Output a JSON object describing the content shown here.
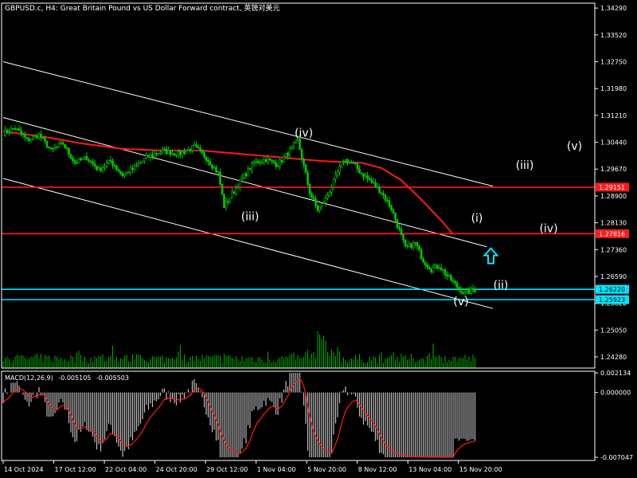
{
  "title": "GBPUSD.c, H4:  Great Britain Pound vs US Dollar Forward contract, 英镑对美元",
  "macd": {
    "label": "MACD(12,26,9)",
    "main": "-0.005105",
    "signal": "-0.005503"
  },
  "colors": {
    "background": "#000000",
    "axis": "#ffffff",
    "candle_up": "#00c800",
    "candle_down": "#00c800",
    "volume": "#00b400",
    "ma_line": "#ff1a1a",
    "resistance_line": "#ff1a1a",
    "support_line": "#00e5ff",
    "channel_line": "#ffffff",
    "macd_hist": "#bfbfbf",
    "macd_signal": "#ff1a1a",
    "arrow": "#00e5ff"
  },
  "chart_data": [
    {
      "type": "candlestick",
      "symbol": "GBPUSD.c",
      "timeframe": "H4",
      "y_ticks": [
        "1.34290",
        "1.33520",
        "1.32750",
        "1.31980",
        "1.31210",
        "1.30440",
        "1.29670",
        "1.28900",
        "1.28130",
        "1.27360",
        "1.26590",
        "1.25820",
        "1.25050",
        "1.24280"
      ],
      "ylim": [
        1.2396,
        1.3443
      ],
      "x_ticks": [
        "14 Oct 2024",
        "17 Oct 12:00",
        "22 Oct 04:00",
        "24 Oct 20:00",
        "29 Oct 12:00",
        "1 Nov 04:00",
        "5 Nov 20:00",
        "8 Nov 12:00",
        "13 Nov 04:00",
        "15 Nov 20:00"
      ],
      "price_path": [
        [
          0,
          1.307
        ],
        [
          6,
          1.3085
        ],
        [
          12,
          1.305
        ],
        [
          18,
          1.3065
        ],
        [
          24,
          1.302
        ],
        [
          30,
          1.304
        ],
        [
          36,
          1.2985
        ],
        [
          42,
          1.3
        ],
        [
          48,
          1.2965
        ],
        [
          54,
          1.299
        ],
        [
          60,
          1.295
        ],
        [
          66,
          1.297
        ],
        [
          72,
          1.3
        ],
        [
          80,
          1.302
        ],
        [
          88,
          1.301
        ],
        [
          96,
          1.303
        ],
        [
          102,
          1.3
        ],
        [
          108,
          1.2955
        ],
        [
          111,
          1.286
        ],
        [
          115,
          1.2895
        ],
        [
          120,
          1.294
        ],
        [
          126,
          1.2985
        ],
        [
          132,
          1.2995
        ],
        [
          138,
          1.298
        ],
        [
          144,
          1.302
        ],
        [
          148,
          1.305
        ],
        [
          151,
          1.2975
        ],
        [
          154,
          1.29
        ],
        [
          158,
          1.285
        ],
        [
          162,
          1.288
        ],
        [
          166,
          1.293
        ],
        [
          171,
          1.2995
        ],
        [
          176,
          1.298
        ],
        [
          180,
          1.2955
        ],
        [
          185,
          1.293
        ],
        [
          190,
          1.29
        ],
        [
          195,
          1.2855
        ],
        [
          199,
          1.279
        ],
        [
          202,
          1.274
        ],
        [
          207,
          1.2755
        ],
        [
          211,
          1.2705
        ],
        [
          215,
          1.268
        ],
        [
          219,
          1.269
        ],
        [
          223,
          1.266
        ],
        [
          228,
          1.263
        ],
        [
          232,
          1.261
        ],
        [
          236,
          1.262
        ]
      ],
      "moving_average": [
        [
          0,
          1.3075
        ],
        [
          20,
          1.306
        ],
        [
          40,
          1.304
        ],
        [
          60,
          1.3025
        ],
        [
          80,
          1.302
        ],
        [
          100,
          1.302
        ],
        [
          120,
          1.301
        ],
        [
          140,
          1.3
        ],
        [
          160,
          1.299
        ],
        [
          180,
          1.2985
        ],
        [
          190,
          1.297
        ],
        [
          200,
          1.2935
        ],
        [
          210,
          1.288
        ],
        [
          220,
          1.282
        ],
        [
          226,
          1.278
        ]
      ],
      "horizontal_levels": [
        {
          "price": 1.29151,
          "label": "1.29151",
          "color": "#ff1a1a"
        },
        {
          "price": 1.27816,
          "label": "1.27816",
          "color": "#ff1a1a"
        },
        {
          "price": 1.2622,
          "label": "1.26220",
          "color": "#00e5ff"
        },
        {
          "price": 1.25923,
          "label": "1.25923",
          "color": "#00e5ff"
        }
      ],
      "channel_lines": [
        {
          "from": [
            0,
            1.3275
          ],
          "to": [
            246,
            1.2918
          ]
        },
        {
          "from": [
            0,
            1.3115
          ],
          "to": [
            243,
            1.2744
          ]
        },
        {
          "from": [
            0,
            1.294
          ],
          "to": [
            246,
            1.2567
          ]
        }
      ],
      "wave_labels": [
        {
          "text": "(iv)",
          "at": [
            151,
            1.306
          ]
        },
        {
          "text": "(iii)",
          "at": [
            124,
            1.282
          ]
        },
        {
          "text": "(v)",
          "at": [
            230,
            1.2577
          ]
        },
        {
          "text": "(i)",
          "at": [
            238,
            1.2816
          ]
        },
        {
          "text": "(ii)",
          "at": [
            250,
            1.2623
          ]
        },
        {
          "text": "(iii)",
          "at": [
            262,
            1.2968
          ]
        },
        {
          "text": "(iv)",
          "at": [
            274,
            1.2786
          ]
        },
        {
          "text": "(v)",
          "at": [
            287,
            1.3022
          ]
        }
      ],
      "arrow": {
        "direction": "up",
        "at": [
          245,
          1.2717
        ]
      },
      "volume_peak_index": 160
    },
    {
      "type": "bar",
      "name": "MACD(12,26,9)",
      "main": -0.005105,
      "signal": -0.005503,
      "y_ticks": [
        "0.002134",
        "0.000000",
        "-0.007047"
      ],
      "ylim": [
        -0.007047,
        0.002134
      ]
    }
  ]
}
